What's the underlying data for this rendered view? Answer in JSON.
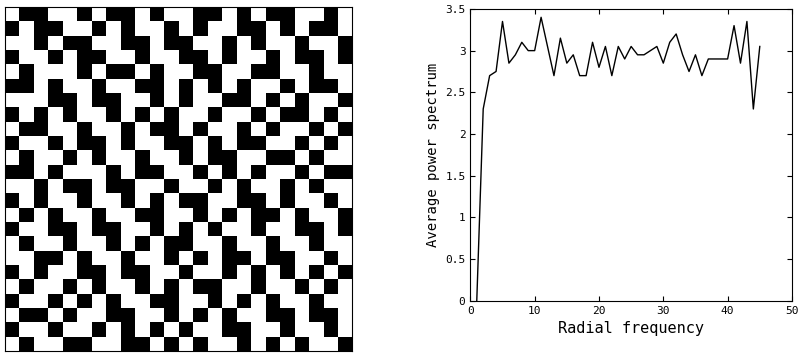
{
  "chart_data": [
    {
      "type": "image",
      "tick_labels": false,
      "cells": [
        [
          1,
          0,
          0,
          1,
          1,
          0,
          1,
          0,
          0,
          1,
          0,
          1,
          1,
          0,
          0,
          1,
          0,
          1,
          0,
          0,
          1,
          1,
          0,
          1
        ],
        [
          0,
          1,
          0,
          0,
          1,
          1,
          0,
          1,
          0,
          1,
          1,
          0,
          1,
          0,
          1,
          1,
          0,
          0,
          1,
          0,
          1,
          0,
          0,
          1
        ],
        [
          1,
          1,
          0,
          1,
          0,
          0,
          1,
          1,
          0,
          0,
          1,
          0,
          0,
          1,
          1,
          0,
          1,
          0,
          1,
          1,
          0,
          1,
          1,
          0
        ],
        [
          0,
          1,
          1,
          0,
          1,
          0,
          0,
          1,
          1,
          0,
          1,
          1,
          0,
          0,
          1,
          0,
          1,
          1,
          0,
          1,
          0,
          0,
          1,
          0
        ],
        [
          1,
          0,
          1,
          1,
          1,
          0,
          1,
          0,
          0,
          1,
          0,
          1,
          1,
          0,
          0,
          1,
          1,
          0,
          0,
          1,
          1,
          0,
          1,
          1
        ],
        [
          0,
          0,
          1,
          0,
          1,
          1,
          0,
          1,
          1,
          0,
          0,
          1,
          0,
          1,
          0,
          1,
          0,
          1,
          1,
          0,
          1,
          0,
          0,
          1
        ],
        [
          1,
          1,
          1,
          0,
          0,
          1,
          0,
          0,
          1,
          1,
          0,
          1,
          0,
          1,
          1,
          0,
          0,
          1,
          0,
          1,
          0,
          1,
          1,
          0
        ],
        [
          0,
          1,
          0,
          1,
          0,
          1,
          1,
          0,
          1,
          0,
          1,
          0,
          1,
          1,
          0,
          1,
          1,
          0,
          1,
          0,
          0,
          1,
          0,
          1
        ],
        [
          1,
          0,
          0,
          1,
          1,
          0,
          1,
          1,
          0,
          1,
          0,
          0,
          1,
          0,
          1,
          1,
          0,
          1,
          0,
          1,
          1,
          0,
          1,
          0
        ],
        [
          0,
          1,
          1,
          0,
          1,
          0,
          0,
          1,
          0,
          1,
          1,
          0,
          0,
          1,
          0,
          1,
          0,
          0,
          1,
          1,
          0,
          1,
          0,
          1
        ],
        [
          1,
          0,
          1,
          1,
          0,
          1,
          0,
          1,
          1,
          0,
          1,
          1,
          0,
          1,
          0,
          0,
          1,
          1,
          0,
          0,
          1,
          0,
          1,
          1
        ],
        [
          0,
          0,
          1,
          0,
          1,
          1,
          1,
          0,
          1,
          0,
          0,
          1,
          1,
          0,
          1,
          0,
          1,
          0,
          1,
          1,
          0,
          1,
          0,
          0
        ],
        [
          1,
          1,
          0,
          1,
          0,
          0,
          1,
          0,
          0,
          1,
          1,
          0,
          1,
          1,
          0,
          1,
          0,
          1,
          1,
          0,
          1,
          0,
          1,
          1
        ],
        [
          0,
          1,
          0,
          1,
          1,
          0,
          1,
          1,
          0,
          1,
          0,
          1,
          0,
          0,
          1,
          1,
          0,
          0,
          1,
          0,
          1,
          1,
          0,
          1
        ],
        [
          1,
          0,
          1,
          0,
          1,
          1,
          0,
          1,
          1,
          0,
          0,
          1,
          1,
          0,
          1,
          0,
          1,
          0,
          0,
          1,
          0,
          1,
          1,
          0
        ],
        [
          0,
          1,
          1,
          0,
          0,
          1,
          0,
          0,
          1,
          1,
          0,
          1,
          0,
          1,
          0,
          1,
          1,
          0,
          1,
          1,
          0,
          0,
          1,
          0
        ],
        [
          1,
          0,
          1,
          1,
          0,
          1,
          1,
          0,
          1,
          0,
          1,
          0,
          0,
          1,
          1,
          0,
          1,
          1,
          0,
          1,
          1,
          0,
          1,
          1
        ],
        [
          1,
          1,
          0,
          0,
          1,
          0,
          1,
          1,
          0,
          1,
          1,
          0,
          1,
          0,
          1,
          0,
          0,
          1,
          0,
          0,
          1,
          1,
          0,
          1
        ],
        [
          0,
          1,
          0,
          1,
          1,
          0,
          0,
          1,
          0,
          0,
          1,
          1,
          0,
          1,
          1,
          0,
          1,
          0,
          1,
          0,
          1,
          0,
          1,
          0
        ],
        [
          1,
          0,
          1,
          1,
          0,
          1,
          0,
          1,
          1,
          0,
          1,
          0,
          1,
          0,
          0,
          1,
          1,
          0,
          1,
          1,
          0,
          1,
          0,
          1
        ],
        [
          0,
          1,
          1,
          0,
          1,
          0,
          1,
          0,
          1,
          1,
          0,
          0,
          1,
          1,
          0,
          1,
          0,
          1,
          0,
          1,
          1,
          0,
          1,
          1
        ],
        [
          1,
          0,
          0,
          1,
          0,
          1,
          1,
          0,
          0,
          1,
          1,
          0,
          1,
          0,
          1,
          0,
          1,
          1,
          0,
          0,
          1,
          0,
          0,
          1
        ],
        [
          0,
          1,
          1,
          0,
          1,
          1,
          0,
          1,
          0,
          1,
          0,
          1,
          0,
          1,
          1,
          0,
          0,
          1,
          1,
          0,
          1,
          1,
          0,
          1
        ],
        [
          1,
          0,
          1,
          1,
          0,
          0,
          1,
          1,
          0,
          0,
          1,
          0,
          1,
          0,
          1,
          1,
          0,
          1,
          0,
          1,
          0,
          1,
          1,
          0
        ]
      ]
    },
    {
      "type": "line",
      "color": "#000000",
      "x_label": "Radial frequency",
      "y_label": "Average power spectrum",
      "x": [
        1,
        2,
        3,
        4,
        5,
        6,
        7,
        8,
        9,
        10,
        11,
        12,
        13,
        14,
        15,
        16,
        17,
        18,
        19,
        20,
        21,
        22,
        23,
        24,
        25,
        26,
        27,
        28,
        29,
        30,
        31,
        32,
        33,
        34,
        35,
        36,
        37,
        38,
        39,
        40,
        41,
        42,
        43,
        44,
        45
      ],
      "values": [
        0,
        2.3,
        2.7,
        2.75,
        3.35,
        2.85,
        2.95,
        3.1,
        3.0,
        3.0,
        3.4,
        3.05,
        2.7,
        3.15,
        2.85,
        2.95,
        2.7,
        2.7,
        3.1,
        2.8,
        3.05,
        2.7,
        3.05,
        2.9,
        3.05,
        2.95,
        2.95,
        3.0,
        3.05,
        2.85,
        3.1,
        3.2,
        2.95,
        2.75,
        2.95,
        2.7,
        2.9,
        2.9,
        2.9,
        2.9,
        3.3,
        2.85,
        3.35,
        2.3,
        3.05
      ],
      "xlim": [
        0,
        50
      ],
      "xticks": [
        0,
        10,
        20,
        30,
        40,
        50
      ],
      "ylim": [
        0,
        3.5
      ],
      "yticks": [
        0,
        0.5,
        1,
        1.5,
        2,
        2.5,
        3,
        3.5
      ]
    }
  ]
}
